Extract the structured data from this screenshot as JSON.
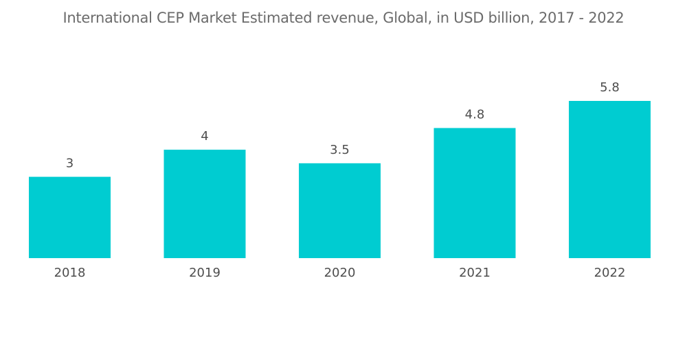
{
  "chart_data": {
    "type": "bar",
    "title": "International CEP Market Estimated revenue, Global, in USD billion, 2017 - 2022",
    "categories": [
      "2018",
      "2019",
      "2020",
      "2021",
      "2022"
    ],
    "values": [
      3,
      4,
      3.5,
      4.8,
      5.8
    ],
    "data_labels": [
      "3",
      "4",
      "3.5",
      "4.8",
      "5.8"
    ],
    "xlabel": "",
    "ylabel": "",
    "ylim": [
      0,
      5.8
    ],
    "grid": false,
    "legend": "none",
    "bar_color": "#00ccd1"
  }
}
